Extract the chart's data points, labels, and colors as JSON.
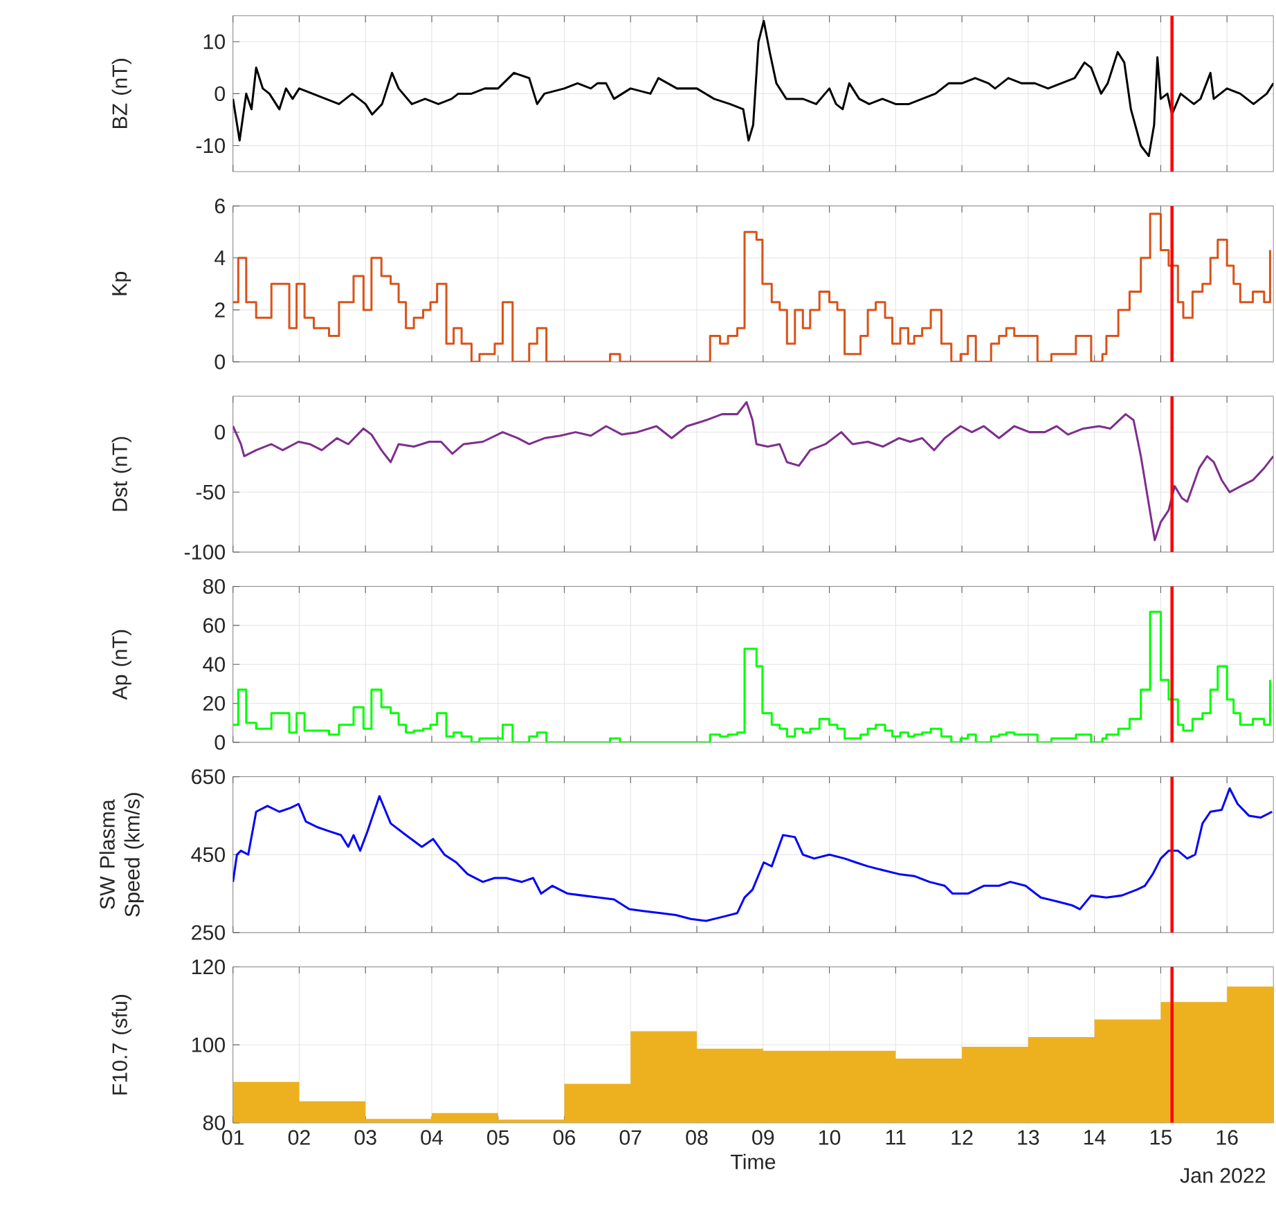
{
  "chart_data": [
    {
      "type": "line",
      "ylabel": "BZ (nT)",
      "color": "#000000",
      "grid": true,
      "tick_labels": "y",
      "xlim": [
        1,
        16.7
      ],
      "ylim": [
        -15,
        15
      ],
      "xticks": [
        1,
        2,
        3,
        4,
        5,
        6,
        7,
        8,
        9,
        10,
        11,
        12,
        13,
        14,
        15,
        16
      ],
      "yticks": [
        -10,
        0,
        10
      ],
      "ref_lines": [
        {
          "axis": "x",
          "value": 15.17,
          "color": "#ff0000"
        }
      ],
      "x": [
        1.0,
        1.05,
        1.1,
        1.2,
        1.28,
        1.35,
        1.45,
        1.55,
        1.7,
        1.8,
        1.9,
        2.0,
        2.2,
        2.4,
        2.6,
        2.8,
        3.0,
        3.1,
        3.25,
        3.4,
        3.5,
        3.7,
        3.9,
        4.1,
        4.3,
        4.4,
        4.6,
        4.8,
        5.0,
        5.24,
        5.47,
        5.59,
        5.7,
        6.0,
        6.2,
        6.4,
        6.5,
        6.63,
        6.75,
        7.0,
        7.3,
        7.42,
        7.7,
        8.0,
        8.26,
        8.5,
        8.7,
        8.78,
        8.85,
        8.93,
        9.01,
        9.1,
        9.2,
        9.35,
        9.6,
        9.8,
        10.0,
        10.1,
        10.2,
        10.3,
        10.45,
        10.6,
        10.8,
        11.0,
        11.2,
        11.4,
        11.6,
        11.8,
        12.0,
        12.2,
        12.4,
        12.5,
        12.7,
        12.9,
        13.1,
        13.3,
        13.5,
        13.7,
        13.85,
        13.95,
        14.1,
        14.2,
        14.35,
        14.45,
        14.55,
        14.7,
        14.82,
        14.9,
        14.95,
        15.0,
        15.1,
        15.17,
        15.3,
        15.5,
        15.6,
        15.75,
        15.8,
        16.0,
        16.2,
        16.4,
        16.6,
        16.7
      ],
      "values": [
        -1,
        -5,
        -9,
        0,
        -3,
        5,
        1,
        0,
        -3,
        1,
        -1,
        1,
        0,
        -1,
        -2,
        0,
        -2,
        -4,
        -2,
        4,
        1,
        -2,
        -1,
        -2,
        -1,
        0,
        0,
        1,
        1,
        4,
        3,
        -2,
        0,
        1,
        2,
        1,
        2,
        2,
        -1,
        1,
        0,
        3,
        1,
        1,
        -1,
        -2,
        -3,
        -9,
        -6,
        10,
        14,
        8,
        2,
        -1,
        -1,
        -2,
        1,
        -2,
        -3,
        2,
        -1,
        -2,
        -1,
        -2,
        -2,
        -1,
        0,
        2,
        2,
        3,
        2,
        1,
        3,
        2,
        2,
        1,
        2,
        3,
        6,
        5,
        0,
        2,
        8,
        6,
        -3,
        -10,
        -12,
        -6,
        7,
        -1,
        0,
        -4,
        0,
        -2,
        -1,
        4,
        -1,
        1,
        0,
        -2,
        0,
        2
      ]
    },
    {
      "type": "step",
      "ylabel": "Kp",
      "color": "#d95319",
      "grid": true,
      "tick_labels": "y",
      "xlim": [
        1,
        16.7
      ],
      "ylim": [
        0,
        6
      ],
      "xticks": [
        1,
        2,
        3,
        4,
        5,
        6,
        7,
        8,
        9,
        10,
        11,
        12,
        13,
        14,
        15,
        16
      ],
      "yticks": [
        0,
        2,
        4,
        6
      ],
      "ref_lines": [
        {
          "axis": "x",
          "value": 15.17,
          "color": "#ff0000"
        }
      ],
      "x": [
        1.0,
        1.08,
        1.2,
        1.35,
        1.58,
        1.85,
        1.96,
        2.08,
        2.22,
        2.45,
        2.6,
        2.82,
        2.97,
        3.09,
        3.24,
        3.38,
        3.5,
        3.61,
        3.73,
        3.87,
        3.98,
        4.08,
        4.22,
        4.33,
        4.45,
        4.6,
        4.72,
        4.95,
        5.07,
        5.22,
        5.47,
        5.59,
        5.73,
        6.69,
        6.84,
        8.2,
        8.35,
        8.47,
        8.61,
        8.72,
        8.9,
        8.99,
        9.13,
        9.25,
        9.36,
        9.48,
        9.6,
        9.71,
        9.85,
        10.0,
        10.12,
        10.23,
        10.47,
        10.58,
        10.7,
        10.84,
        10.95,
        11.07,
        11.19,
        11.28,
        11.4,
        11.53,
        11.69,
        11.84,
        11.98,
        12.09,
        12.21,
        12.44,
        12.56,
        12.67,
        12.79,
        13.14,
        13.35,
        13.72,
        13.95,
        14.12,
        14.18,
        14.36,
        14.53,
        14.7,
        14.84,
        15.0,
        15.12,
        15.26,
        15.34,
        15.48,
        15.63,
        15.75,
        15.86,
        16.0,
        16.1,
        16.2,
        16.39,
        16.56,
        16.65
      ],
      "values": [
        2.3,
        4,
        2.3,
        1.7,
        3,
        1.3,
        3,
        1.7,
        1.3,
        1,
        2.3,
        3.3,
        2,
        4,
        3.3,
        3,
        2.3,
        1.3,
        1.7,
        2,
        2.3,
        3,
        0.7,
        1.3,
        0.7,
        0,
        0.3,
        0.7,
        2.3,
        0,
        0.7,
        1.3,
        0,
        0.3,
        0,
        1,
        0.7,
        1,
        1.3,
        5,
        4.7,
        3,
        2.3,
        2,
        0.7,
        2,
        1.3,
        2,
        2.7,
        2.3,
        2,
        0.3,
        1,
        2,
        2.3,
        1.7,
        0.7,
        1.3,
        0.7,
        1,
        1.3,
        2,
        0.7,
        0,
        0.3,
        1,
        0,
        0.7,
        1,
        1.3,
        1,
        0,
        0.3,
        1,
        0,
        0.3,
        1,
        2,
        2.7,
        4,
        5.7,
        4.3,
        3.7,
        2.3,
        1.7,
        2.7,
        3,
        4,
        4.7,
        3.7,
        3,
        2.3,
        2.7,
        2.3,
        4.3
      ]
    },
    {
      "type": "line",
      "ylabel": "Dst (nT)",
      "color": "#7e2f8e",
      "grid": true,
      "tick_labels": "y",
      "xlim": [
        1,
        16.7
      ],
      "ylim": [
        -100,
        30
      ],
      "xticks": [
        1,
        2,
        3,
        4,
        5,
        6,
        7,
        8,
        9,
        10,
        11,
        12,
        13,
        14,
        15,
        16
      ],
      "yticks": [
        -100,
        -50,
        0
      ],
      "ref_lines": [
        {
          "axis": "x",
          "value": 15.17,
          "color": "#ff0000"
        }
      ],
      "x": [
        1.0,
        1.12,
        1.17,
        1.35,
        1.58,
        1.75,
        1.99,
        2.16,
        2.34,
        2.57,
        2.74,
        2.97,
        3.09,
        3.24,
        3.38,
        3.5,
        3.73,
        3.96,
        4.14,
        4.31,
        4.48,
        4.77,
        5.07,
        5.3,
        5.47,
        5.7,
        5.94,
        6.17,
        6.4,
        6.63,
        6.87,
        7.1,
        7.39,
        7.62,
        7.85,
        8.14,
        8.38,
        8.61,
        8.75,
        8.84,
        8.9,
        9.07,
        9.25,
        9.36,
        9.54,
        9.71,
        9.94,
        10.18,
        10.35,
        10.58,
        10.81,
        11.05,
        11.22,
        11.4,
        11.58,
        11.74,
        11.98,
        12.15,
        12.33,
        12.56,
        12.79,
        13.02,
        13.25,
        13.43,
        13.6,
        13.83,
        14.07,
        14.24,
        14.47,
        14.59,
        14.7,
        14.82,
        14.91,
        15.0,
        15.12,
        15.21,
        15.32,
        15.4,
        15.58,
        15.7,
        15.8,
        15.92,
        16.04,
        16.21,
        16.39,
        16.56,
        16.7
      ],
      "values": [
        5,
        -10,
        -20,
        -15,
        -10,
        -15,
        -8,
        -10,
        -15,
        -5,
        -10,
        3,
        -2,
        -15,
        -25,
        -10,
        -12,
        -8,
        -8,
        -18,
        -10,
        -8,
        0,
        -5,
        -10,
        -5,
        -3,
        0,
        -3,
        5,
        -2,
        0,
        5,
        -5,
        5,
        10,
        15,
        15,
        25,
        10,
        -10,
        -12,
        -10,
        -25,
        -28,
        -15,
        -10,
        0,
        -10,
        -8,
        -12,
        -5,
        -8,
        -5,
        -15,
        -5,
        5,
        0,
        5,
        -5,
        5,
        0,
        0,
        5,
        -2,
        3,
        5,
        3,
        15,
        10,
        -20,
        -60,
        -90,
        -75,
        -65,
        -45,
        -55,
        -58,
        -30,
        -20,
        -25,
        -40,
        -50,
        -45,
        -40,
        -30,
        -20
      ]
    },
    {
      "type": "step",
      "ylabel": "Ap (nT)",
      "color": "#00ff00",
      "grid": true,
      "tick_labels": "y",
      "xlim": [
        1,
        16.7
      ],
      "ylim": [
        0,
        80
      ],
      "xticks": [
        1,
        2,
        3,
        4,
        5,
        6,
        7,
        8,
        9,
        10,
        11,
        12,
        13,
        14,
        15,
        16
      ],
      "yticks": [
        0,
        20,
        40,
        60,
        80
      ],
      "ref_lines": [
        {
          "axis": "x",
          "value": 15.17,
          "color": "#ff0000"
        }
      ],
      "x": [
        1.0,
        1.08,
        1.2,
        1.35,
        1.58,
        1.85,
        1.96,
        2.08,
        2.45,
        2.6,
        2.82,
        2.97,
        3.09,
        3.24,
        3.38,
        3.5,
        3.61,
        3.73,
        3.87,
        3.98,
        4.08,
        4.22,
        4.33,
        4.45,
        4.6,
        4.72,
        5.07,
        5.22,
        5.47,
        5.59,
        5.73,
        6.69,
        6.84,
        8.2,
        8.35,
        8.47,
        8.61,
        8.72,
        8.9,
        8.99,
        9.13,
        9.25,
        9.36,
        9.48,
        9.6,
        9.71,
        9.85,
        10.0,
        10.12,
        10.23,
        10.47,
        10.58,
        10.7,
        10.84,
        10.95,
        11.07,
        11.19,
        11.28,
        11.4,
        11.53,
        11.69,
        11.84,
        11.98,
        12.09,
        12.21,
        12.44,
        12.56,
        12.67,
        12.79,
        13.14,
        13.35,
        13.72,
        13.95,
        14.12,
        14.18,
        14.36,
        14.53,
        14.7,
        14.84,
        15.0,
        15.12,
        15.26,
        15.34,
        15.48,
        15.63,
        15.75,
        15.86,
        16.0,
        16.1,
        16.2,
        16.39,
        16.56,
        16.65
      ],
      "values": [
        9,
        27,
        10,
        7,
        15,
        5,
        15,
        6,
        4,
        9,
        18,
        7,
        27,
        18,
        15,
        9,
        5,
        6,
        7,
        9,
        15,
        3,
        5,
        3,
        0,
        2,
        9,
        0,
        3,
        5,
        0,
        2,
        0,
        4,
        3,
        4,
        5,
        48,
        39,
        15,
        9,
        7,
        3,
        7,
        5,
        7,
        12,
        9,
        7,
        2,
        4,
        7,
        9,
        6,
        3,
        5,
        3,
        4,
        5,
        7,
        3,
        0,
        2,
        4,
        0,
        3,
        4,
        5,
        4,
        0,
        2,
        4,
        0,
        2,
        4,
        7,
        12,
        27,
        67,
        32,
        22,
        9,
        6,
        12,
        15,
        27,
        39,
        22,
        15,
        9,
        12,
        9,
        32
      ]
    },
    {
      "type": "line",
      "ylabel": "SW Plasma Speed (km/s)",
      "color": "#0000ff",
      "grid": true,
      "tick_labels": "y",
      "xlim": [
        1,
        16.7
      ],
      "ylim": [
        250,
        650
      ],
      "xticks": [
        1,
        2,
        3,
        4,
        5,
        6,
        7,
        8,
        9,
        10,
        11,
        12,
        13,
        14,
        15,
        16
      ],
      "yticks": [
        250,
        450,
        650
      ],
      "ref_lines": [
        {
          "axis": "x",
          "value": 15.17,
          "color": "#ff0000"
        }
      ],
      "x": [
        1.0,
        1.06,
        1.12,
        1.23,
        1.35,
        1.52,
        1.7,
        1.87,
        1.99,
        2.1,
        2.28,
        2.45,
        2.63,
        2.74,
        2.82,
        2.92,
        3.03,
        3.21,
        3.38,
        3.61,
        3.85,
        4.02,
        4.19,
        4.37,
        4.54,
        4.77,
        4.95,
        5.12,
        5.36,
        5.53,
        5.65,
        5.82,
        6.05,
        6.28,
        6.52,
        6.75,
        6.98,
        7.21,
        7.45,
        7.68,
        7.91,
        8.14,
        8.38,
        8.61,
        8.72,
        8.84,
        9.01,
        9.13,
        9.3,
        9.48,
        9.6,
        9.77,
        10.0,
        10.23,
        10.4,
        10.58,
        10.81,
        11.05,
        11.28,
        11.51,
        11.74,
        11.86,
        12.09,
        12.33,
        12.56,
        12.73,
        12.96,
        13.19,
        13.43,
        13.66,
        13.78,
        13.95,
        14.18,
        14.41,
        14.64,
        14.76,
        14.88,
        15.0,
        15.12,
        15.26,
        15.4,
        15.52,
        15.63,
        15.75,
        15.92,
        16.04,
        16.16,
        16.33,
        16.51,
        16.68
      ],
      "values": [
        380,
        450,
        460,
        450,
        560,
        575,
        560,
        570,
        580,
        535,
        520,
        510,
        500,
        470,
        500,
        460,
        510,
        600,
        530,
        500,
        470,
        490,
        450,
        430,
        400,
        380,
        390,
        390,
        380,
        390,
        350,
        370,
        350,
        345,
        340,
        335,
        310,
        305,
        300,
        295,
        285,
        280,
        290,
        300,
        340,
        360,
        430,
        420,
        500,
        495,
        450,
        440,
        450,
        440,
        430,
        420,
        410,
        400,
        395,
        380,
        370,
        350,
        350,
        370,
        370,
        380,
        370,
        340,
        330,
        320,
        310,
        345,
        340,
        345,
        360,
        370,
        400,
        440,
        460,
        460,
        440,
        450,
        530,
        560,
        565,
        620,
        580,
        550,
        545,
        560
      ]
    },
    {
      "type": "area",
      "ylabel": "F10.7 (sfu)",
      "xlabel": "Time",
      "color": "#edb120",
      "grid": true,
      "xlim": [
        1,
        16.7
      ],
      "ylim": [
        80,
        120
      ],
      "xticks": [
        {
          "value": 1,
          "label": "01"
        },
        {
          "value": 2,
          "label": "02"
        },
        {
          "value": 3,
          "label": "03"
        },
        {
          "value": 4,
          "label": "04"
        },
        {
          "value": 5,
          "label": "05"
        },
        {
          "value": 6,
          "label": "06"
        },
        {
          "value": 7,
          "label": "07"
        },
        {
          "value": 8,
          "label": "08"
        },
        {
          "value": 9,
          "label": "09"
        },
        {
          "value": 10,
          "label": "10"
        },
        {
          "value": 11,
          "label": "11"
        },
        {
          "value": 12,
          "label": "12"
        },
        {
          "value": 13,
          "label": "13"
        },
        {
          "value": 14,
          "label": "14"
        },
        {
          "value": 15,
          "label": "15"
        },
        {
          "value": 16,
          "label": "16"
        }
      ],
      "yticks": [
        80,
        100,
        120
      ],
      "ref_lines": [
        {
          "axis": "x",
          "value": 15.17,
          "color": "#ff0000"
        }
      ],
      "annotations": [
        "Jan 2022"
      ],
      "x": [
        1,
        2,
        3,
        4,
        5,
        6,
        7,
        8,
        9,
        10,
        11,
        12,
        13,
        14,
        15,
        16,
        16.7
      ],
      "values": [
        90.5,
        85.5,
        81,
        82.5,
        80.8,
        90,
        103.5,
        99,
        98.5,
        98.5,
        96.5,
        99.5,
        102,
        106.5,
        111,
        115,
        115
      ]
    }
  ]
}
